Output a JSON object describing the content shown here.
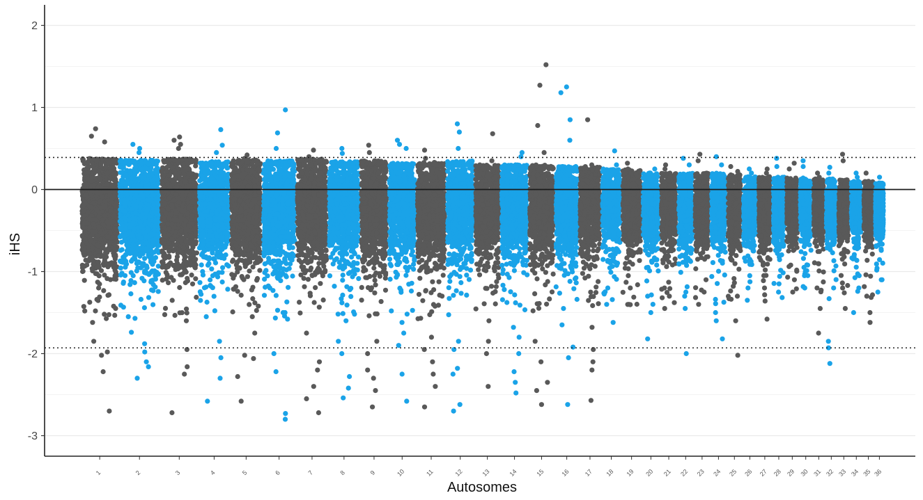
{
  "chart_data": {
    "type": "scatter",
    "title": "",
    "xlabel": "Autosomes",
    "ylabel": "iHS",
    "ylim": [
      -3.25,
      2.25
    ],
    "y_ticks": [
      -3,
      -2,
      -1,
      0,
      1,
      2
    ],
    "y_tick_labels": [
      "-3",
      "-2",
      "-1",
      "0",
      "1",
      "2"
    ],
    "grid": true,
    "legend": "none",
    "colors": {
      "odd_chromosomes": "#595959",
      "even_chromosomes": "#1aa3e8",
      "zero_line": "#1a1a1a",
      "threshold_line": "#222222"
    },
    "reference_lines": [
      {
        "kind": "solid",
        "y": 0
      },
      {
        "kind": "dotted",
        "y": 0.39
      },
      {
        "kind": "dotted",
        "y": -1.93
      }
    ],
    "chromosomes": [
      {
        "label": "1",
        "core": [
          -0.8,
          0.38
        ],
        "extremes": [
          -2.7,
          -2.22,
          -2.02,
          -1.98,
          -1.85,
          -1.62,
          -1.48,
          0.58,
          0.65,
          0.74
        ]
      },
      {
        "label": "2",
        "core": [
          -0.78,
          0.36
        ],
        "extremes": [
          -2.3,
          -2.16,
          -2.1,
          -1.98,
          -1.88,
          -1.74,
          -1.55,
          0.45,
          0.5,
          0.55
        ]
      },
      {
        "label": "3",
        "core": [
          -0.78,
          0.37
        ],
        "extremes": [
          -2.72,
          -2.25,
          -2.16,
          -1.95,
          -1.6,
          0.5,
          0.55,
          0.6,
          0.64
        ]
      },
      {
        "label": "4",
        "core": [
          -0.72,
          0.34
        ],
        "extremes": [
          -2.58,
          -2.3,
          -2.05,
          -1.85,
          -1.55,
          0.45,
          0.54,
          0.73
        ]
      },
      {
        "label": "5",
        "core": [
          -0.76,
          0.36
        ],
        "extremes": [
          -2.58,
          -2.28,
          -2.06,
          -2.02,
          -1.75,
          -1.55,
          0.38,
          0.42
        ]
      },
      {
        "label": "6",
        "core": [
          -0.78,
          0.35
        ],
        "extremes": [
          -2.8,
          -2.73,
          -2.22,
          -2.0,
          -1.58,
          -1.5,
          0.5,
          0.69,
          0.97
        ]
      },
      {
        "label": "7",
        "core": [
          -0.76,
          0.37
        ],
        "extremes": [
          -2.72,
          -2.55,
          -2.4,
          -2.2,
          -2.1,
          -1.75,
          0.4,
          0.48
        ]
      },
      {
        "label": "8",
        "core": [
          -0.74,
          0.34
        ],
        "extremes": [
          -2.54,
          -2.42,
          -2.28,
          -2.0,
          -1.85,
          -1.6,
          0.44,
          0.5
        ]
      },
      {
        "label": "9",
        "core": [
          -0.76,
          0.35
        ],
        "extremes": [
          -2.65,
          -2.45,
          -2.3,
          -2.2,
          -2.0,
          -1.85,
          0.45,
          0.54
        ]
      },
      {
        "label": "10",
        "core": [
          -0.72,
          0.32
        ],
        "extremes": [
          -2.58,
          -2.25,
          -1.9,
          -1.75,
          -1.62,
          0.5,
          0.55,
          0.6
        ]
      },
      {
        "label": "11",
        "core": [
          -0.78,
          0.33
        ],
        "extremes": [
          -2.65,
          -2.4,
          -2.25,
          -2.1,
          -1.95,
          -1.8,
          0.38,
          0.48
        ]
      },
      {
        "label": "12",
        "core": [
          -0.74,
          0.35
        ],
        "extremes": [
          -2.7,
          -2.62,
          -2.25,
          -2.18,
          -1.95,
          -1.85,
          0.5,
          0.7,
          0.8
        ]
      },
      {
        "label": "13",
        "core": [
          -0.72,
          0.3
        ],
        "extremes": [
          -2.4,
          -2.0,
          -1.85,
          -1.6,
          0.35,
          0.68
        ]
      },
      {
        "label": "14",
        "core": [
          -0.72,
          0.3
        ],
        "extremes": [
          -2.48,
          -2.35,
          -2.22,
          -2.0,
          -1.8,
          -1.68,
          0.4,
          0.45
        ]
      },
      {
        "label": "15",
        "core": [
          -0.7,
          0.3
        ],
        "extremes": [
          -2.62,
          -2.45,
          -2.35,
          -2.1,
          -1.85,
          0.45,
          0.78,
          1.27,
          1.52
        ]
      },
      {
        "label": "16",
        "core": [
          -0.7,
          0.28
        ],
        "extremes": [
          -2.62,
          -2.05,
          -1.92,
          -1.65,
          -1.45,
          0.6,
          0.85,
          1.18,
          1.25
        ]
      },
      {
        "label": "17",
        "core": [
          -0.66,
          0.28
        ],
        "extremes": [
          -2.57,
          -2.2,
          -2.1,
          -1.95,
          -1.68,
          0.3,
          0.85
        ]
      },
      {
        "label": "18",
        "core": [
          -0.64,
          0.25
        ],
        "extremes": [
          -1.62,
          -1.4,
          -1.2,
          0.3,
          0.47
        ]
      },
      {
        "label": "19",
        "core": [
          -0.64,
          0.24
        ],
        "extremes": [
          -1.4,
          -1.2,
          -1.05,
          0.25,
          0.32
        ]
      },
      {
        "label": "20",
        "core": [
          -0.62,
          0.2
        ],
        "extremes": [
          -1.82,
          -1.5,
          -1.3,
          0.2,
          0.25
        ]
      },
      {
        "label": "21",
        "core": [
          -0.62,
          0.2
        ],
        "extremes": [
          -1.45,
          -1.3,
          -1.2,
          0.25,
          0.3
        ]
      },
      {
        "label": "22",
        "core": [
          -0.6,
          0.2
        ],
        "extremes": [
          -2.0,
          -1.45,
          -1.3,
          0.3,
          0.38
        ]
      },
      {
        "label": "23",
        "core": [
          -0.6,
          0.2
        ],
        "extremes": [
          -1.4,
          -1.25,
          -1.1,
          0.35,
          0.43
        ]
      },
      {
        "label": "24",
        "core": [
          -0.6,
          0.2
        ],
        "extremes": [
          -1.82,
          -1.6,
          -1.5,
          0.3,
          0.4
        ]
      },
      {
        "label": "25",
        "core": [
          -0.6,
          0.18
        ],
        "extremes": [
          -2.02,
          -1.6,
          -1.3,
          0.22,
          0.28
        ]
      },
      {
        "label": "26",
        "core": [
          -0.58,
          0.16
        ],
        "extremes": [
          -1.35,
          -1.2,
          -1.05,
          0.2,
          0.25
        ]
      },
      {
        "label": "27",
        "core": [
          -0.58,
          0.16
        ],
        "extremes": [
          -1.58,
          -1.2,
          -1.05,
          0.2,
          0.25
        ]
      },
      {
        "label": "28",
        "core": [
          -0.58,
          0.15
        ],
        "extremes": [
          -1.25,
          -1.15,
          0.28,
          0.38
        ]
      },
      {
        "label": "29",
        "core": [
          -0.56,
          0.14
        ],
        "extremes": [
          -1.25,
          -1.1,
          0.25,
          0.32
        ]
      },
      {
        "label": "30",
        "core": [
          -0.56,
          0.14
        ],
        "extremes": [
          -1.2,
          -1.05,
          0.28,
          0.35
        ]
      },
      {
        "label": "31",
        "core": [
          -0.56,
          0.13
        ],
        "extremes": [
          -1.75,
          -1.45,
          -1.2,
          0.15,
          0.2
        ]
      },
      {
        "label": "32",
        "core": [
          -0.56,
          0.13
        ],
        "extremes": [
          -2.12,
          -1.93,
          -1.85,
          -1.2,
          0.2,
          0.27
        ]
      },
      {
        "label": "33",
        "core": [
          -0.54,
          0.12
        ],
        "extremes": [
          -1.45,
          -1.2,
          0.35,
          0.43
        ]
      },
      {
        "label": "34",
        "core": [
          -0.54,
          0.1
        ],
        "extremes": [
          -1.5,
          -1.2,
          -1.05,
          0.15,
          0.2
        ]
      },
      {
        "label": "35",
        "core": [
          -0.52,
          0.1
        ],
        "extremes": [
          -1.62,
          -1.5,
          -1.3,
          0.1,
          0.2
        ]
      },
      {
        "label": "36",
        "core": [
          -0.52,
          0.08
        ],
        "extremes": [
          -1.25,
          -1.1,
          0.08,
          0.15
        ]
      }
    ]
  }
}
